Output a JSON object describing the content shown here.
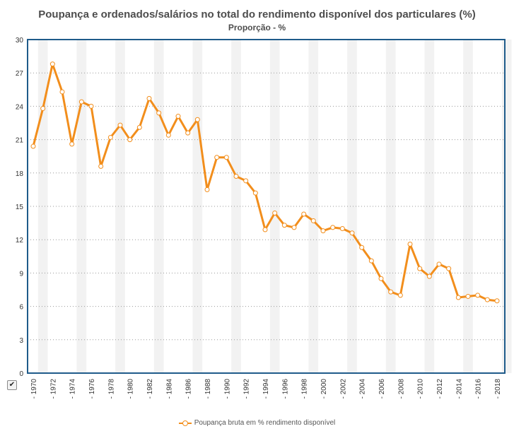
{
  "colors": {
    "line": "#f28e1c",
    "frame": "#1f5b8a",
    "band": "#f2f2f2",
    "grid": "#999999"
  },
  "toggle": {
    "checked": true,
    "glyph": "✔"
  },
  "chart_data": {
    "type": "line",
    "title": "Poupança e ordenados/salários no total do rendimento disponível dos particulares (%)",
    "subtitle": "Proporção - %",
    "xlabel": "",
    "ylabel": "",
    "ylim": [
      0,
      30
    ],
    "yticks": [
      "0",
      "3",
      "6",
      "9",
      "12",
      "15",
      "18",
      "21",
      "24",
      "27",
      "30"
    ],
    "grid": true,
    "legend_position": "bottom",
    "x": [
      1970,
      1971,
      1972,
      1973,
      1974,
      1975,
      1976,
      1977,
      1978,
      1979,
      1980,
      1981,
      1982,
      1983,
      1984,
      1985,
      1986,
      1987,
      1988,
      1989,
      1990,
      1991,
      1992,
      1993,
      1994,
      1995,
      1996,
      1997,
      1998,
      1999,
      2000,
      2001,
      2002,
      2003,
      2004,
      2005,
      2006,
      2007,
      2008,
      2009,
      2010,
      2011,
      2012,
      2013,
      2014,
      2015,
      2016,
      2017,
      2018
    ],
    "xtick_labels": [
      "1970",
      "1972",
      "1974",
      "1976",
      "1978",
      "1980",
      "1982",
      "1984",
      "1986",
      "1988",
      "1990",
      "1992",
      "1994",
      "1996",
      "1998",
      "2000",
      "2002",
      "2004",
      "2006",
      "2008",
      "2010",
      "2012",
      "2014",
      "2016",
      "2018"
    ],
    "series": [
      {
        "name": "Poupança bruta em % rendimento disponível",
        "values": [
          20.4,
          23.8,
          27.8,
          25.3,
          20.6,
          24.4,
          24.0,
          18.6,
          21.2,
          22.3,
          21.0,
          22.1,
          24.7,
          23.4,
          21.4,
          23.1,
          21.6,
          22.8,
          16.5,
          19.4,
          19.4,
          17.7,
          17.3,
          16.2,
          12.9,
          14.4,
          13.3,
          13.1,
          14.3,
          13.7,
          12.8,
          13.1,
          13.0,
          12.6,
          11.3,
          10.1,
          8.5,
          7.3,
          7.0,
          11.6,
          9.4,
          8.7,
          9.8,
          9.4,
          6.8,
          6.9,
          7.0,
          6.6,
          6.5
        ]
      }
    ]
  }
}
